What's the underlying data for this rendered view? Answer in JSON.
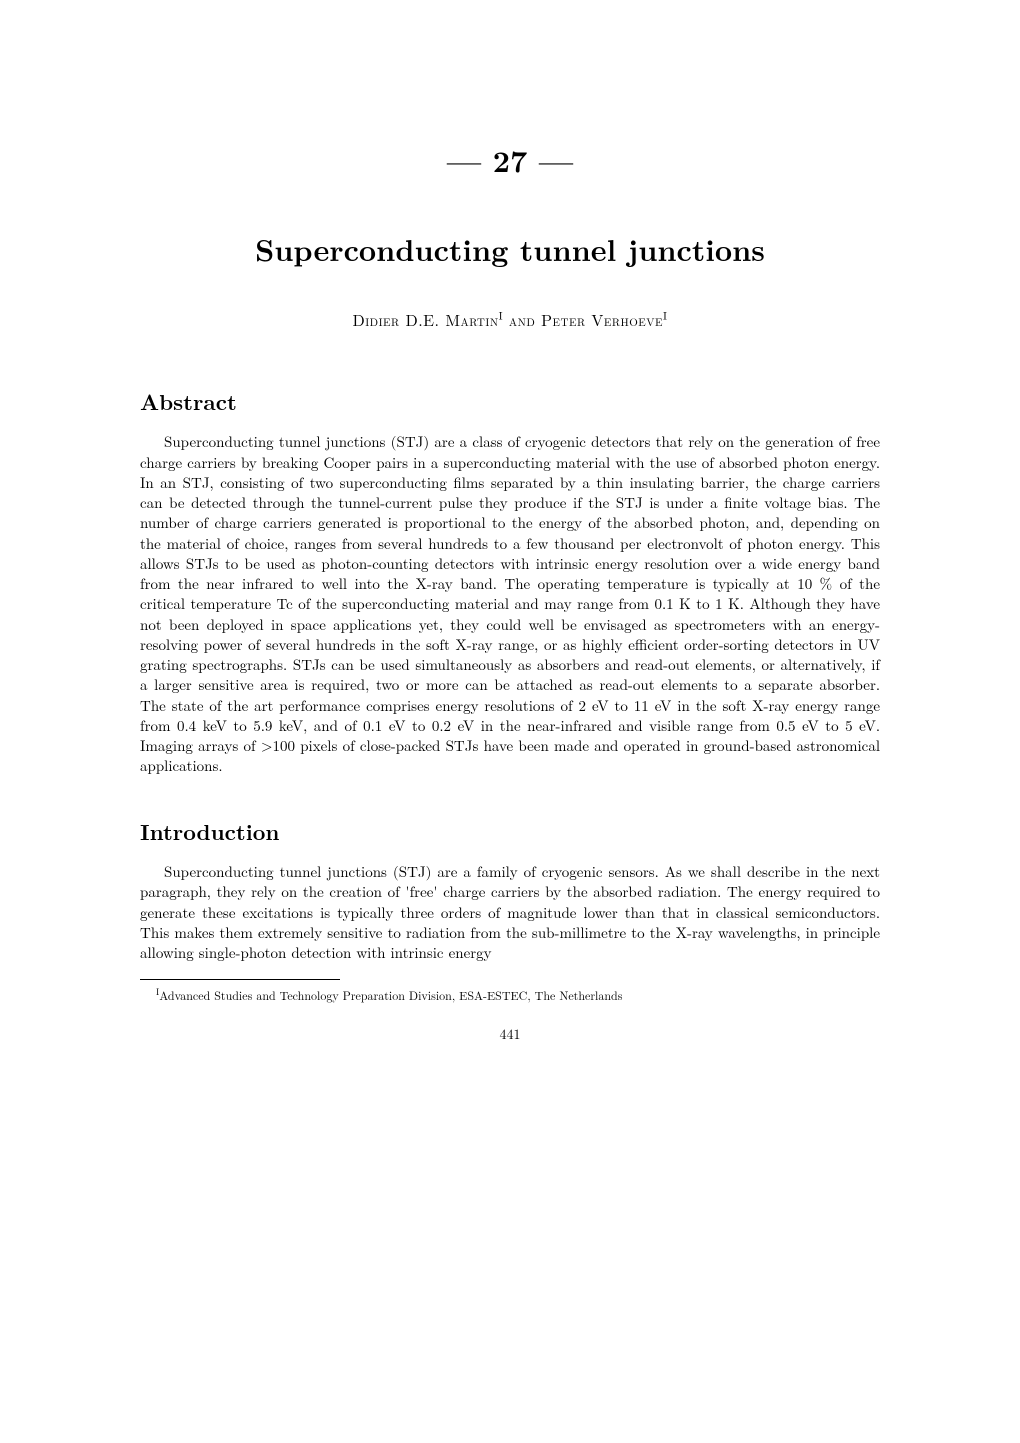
{
  "chapter": {
    "number_display": "— 27 —"
  },
  "title": "Superconducting tunnel junctions",
  "authors": {
    "line": "Didier D.E. Martin",
    "sup1": "I",
    "and": " and ",
    "name2": "Peter Verhoeve",
    "sup2": "I"
  },
  "abstract": {
    "heading": "Abstract",
    "body": "Superconducting tunnel junctions (STJ) are a class of cryogenic detectors that rely on the generation of free charge carriers by breaking Cooper pairs in a superconducting material with the use of absorbed photon energy. In an STJ, consisting of two superconducting films separated by a thin insulating barrier, the charge carriers can be detected through the tunnel-current pulse they produce if the STJ is under a finite voltage bias. The number of charge carriers generated is proportional to the energy of the absorbed photon, and, depending on the material of choice, ranges from several hundreds to a few thousand per electronvolt of photon energy. This allows STJs to be used as photon-counting detectors with intrinsic energy resolution over a wide energy band from the near infrared to well into the X-ray band. The operating temperature is typically at 10 % of the critical temperature Tc of the superconducting material and may range from 0.1 K to 1 K. Although they have not been deployed in space applications yet, they could well be envisaged as spectrometers with an energy-resolving power of several hundreds in the soft X-ray range, or as highly efficient order-sorting detectors in UV grating spectrographs. STJs can be used simultaneously as absorbers and read-out elements, or alternatively, if a larger sensitive area is required, two or more can be attached as read-out elements to a separate absorber. The state of the art performance comprises energy resolutions of 2 eV to 11 eV in the soft X-ray energy range from 0.4 keV to 5.9 keV, and of 0.1 eV to 0.2 eV in the near-infrared and visible range from 0.5 eV to 5 eV. Imaging arrays of >100 pixels of close-packed STJs have been made and operated in ground-based astronomical applications."
  },
  "introduction": {
    "heading": "Introduction",
    "body": "Superconducting tunnel junctions (STJ) are a family of cryogenic sensors. As we shall describe in the next paragraph, they rely on the creation of 'free' charge carriers by the absorbed radiation. The energy required to generate these excitations is typically three orders of magnitude lower than that in classical semiconductors. This makes them extremely sensitive to radiation from the sub-millimetre to the X-ray wavelengths, in principle allowing single-photon detection with intrinsic energy"
  },
  "footnote": {
    "marker": "I",
    "text": "Advanced Studies and Technology Preparation Division, ESA-ESTEC, The Netherlands"
  },
  "page_number": "441"
}
